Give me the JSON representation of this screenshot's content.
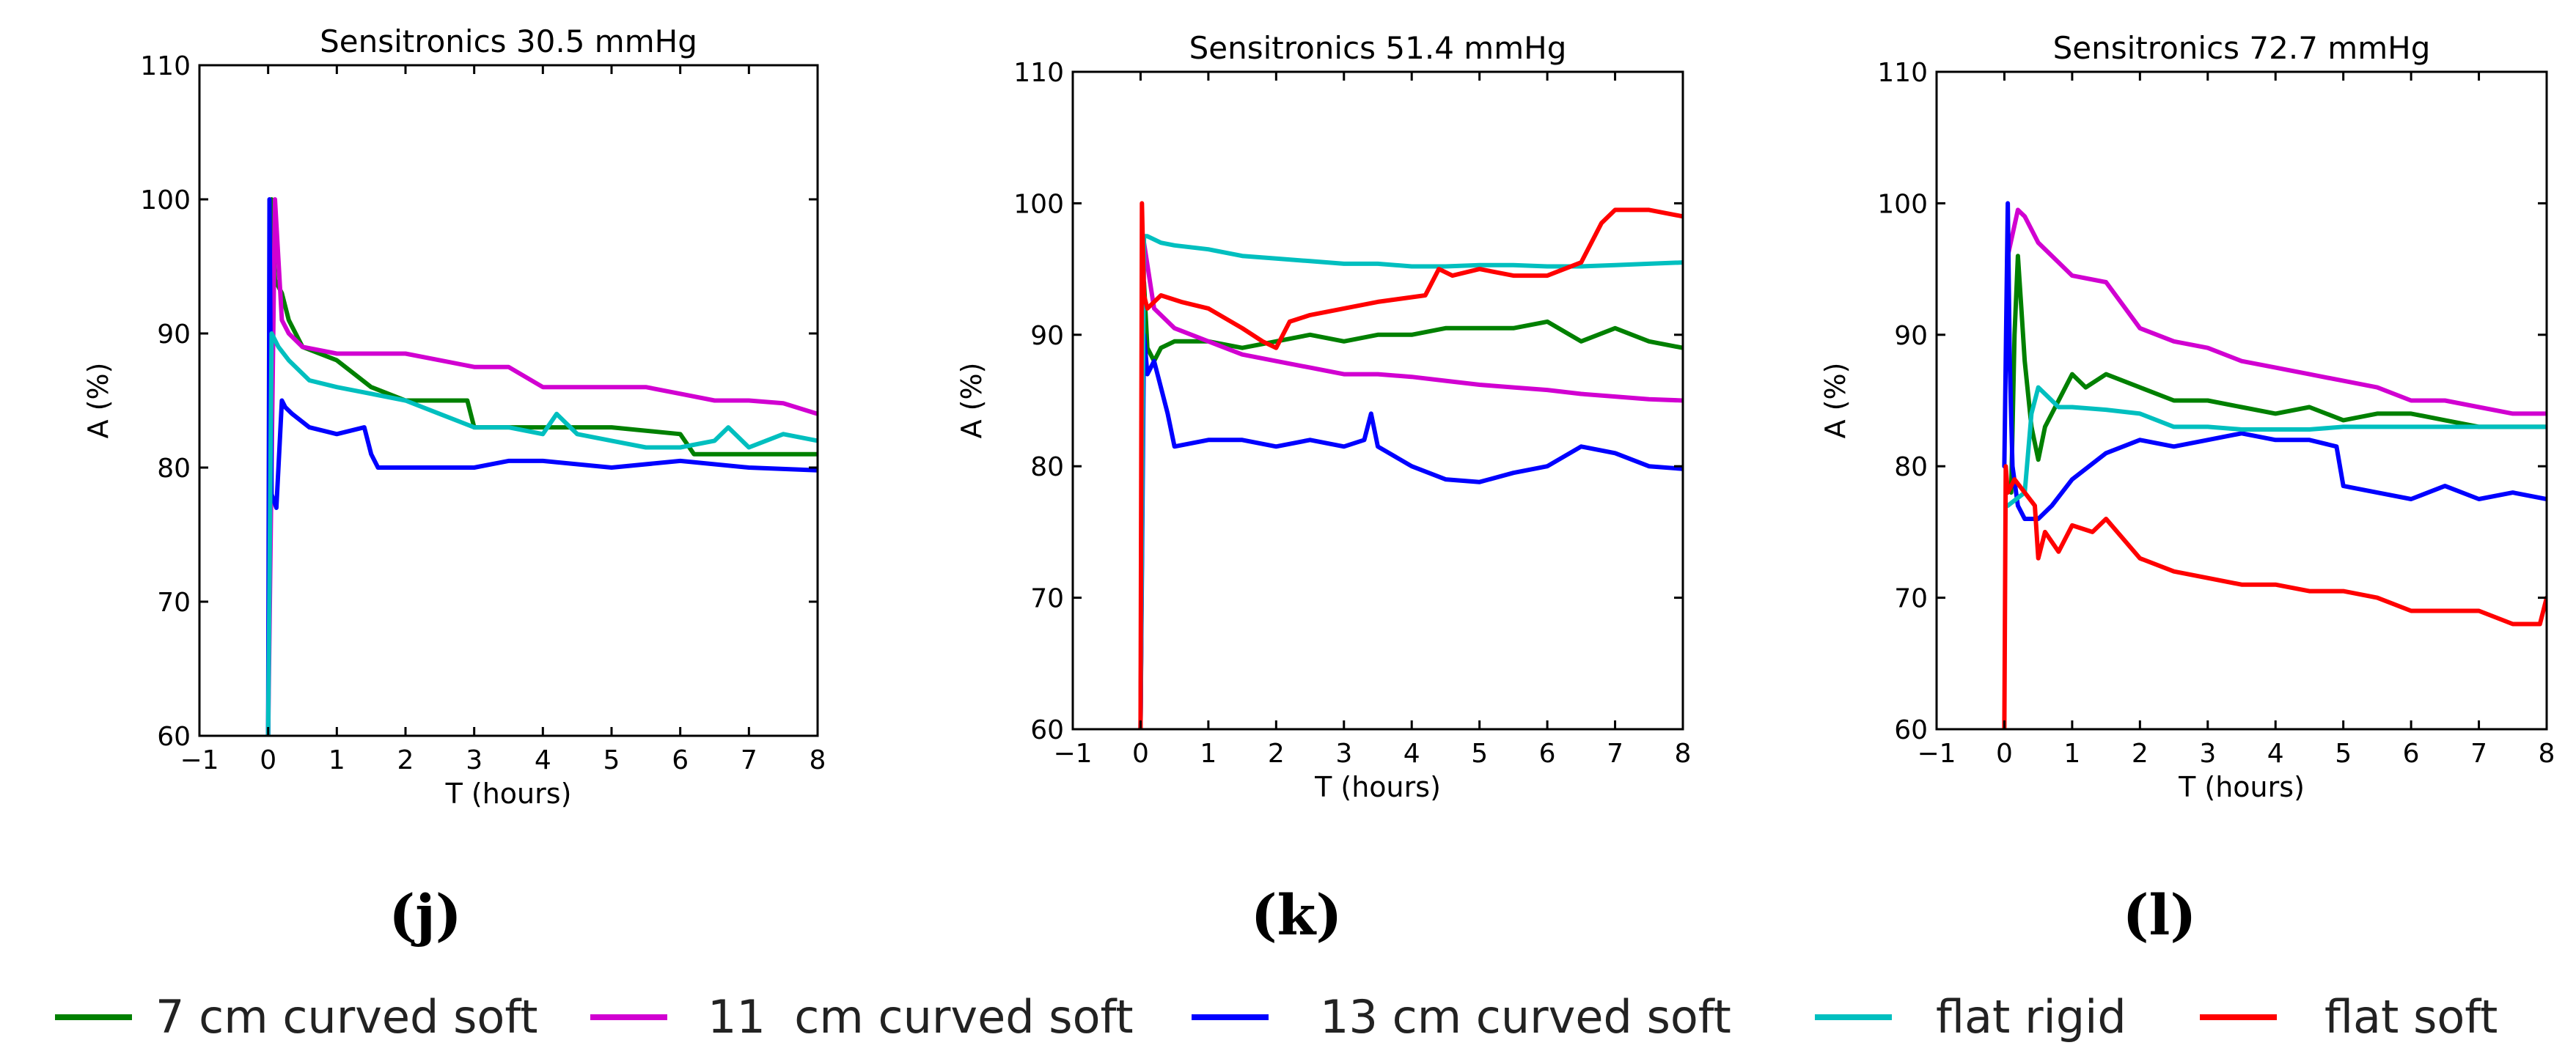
{
  "chart_data": [
    {
      "type": "line",
      "panel_label": "(j)",
      "title": "Sensitronics 30.5 mmHg",
      "xlabel": "T (hours)",
      "ylabel": "A (%)",
      "xlim": [
        -1,
        8
      ],
      "ylim": [
        60,
        110
      ],
      "xticks": [
        -1,
        0,
        1,
        2,
        3,
        4,
        5,
        6,
        7,
        8
      ],
      "yticks": [
        60,
        70,
        80,
        90,
        100,
        110
      ],
      "xtick_labels": [
        "−1",
        "0",
        "1",
        "2",
        "3",
        "4",
        "5",
        "6",
        "7",
        "8"
      ],
      "ytick_labels": [
        "60",
        "70",
        "80",
        "90",
        "100",
        "110"
      ],
      "series": [
        {
          "name": "7 cm curved soft",
          "color": "#008000",
          "x": [
            0,
            0.05,
            0.1,
            0.2,
            0.3,
            0.5,
            1,
            1.5,
            2,
            2.5,
            2.9,
            3,
            4,
            5,
            6,
            6.2,
            7,
            8
          ],
          "y": [
            60,
            100,
            94,
            93,
            91,
            89,
            88,
            86,
            85,
            85,
            85,
            83,
            83,
            83,
            82.5,
            81,
            81,
            81
          ]
        },
        {
          "name": "11  cm curved soft",
          "color": "#d100d1",
          "x": [
            0,
            0.1,
            0.2,
            0.3,
            0.5,
            1,
            1.5,
            2,
            2.5,
            3,
            3.5,
            4,
            4.5,
            5,
            5.5,
            6,
            6.5,
            7,
            7.5,
            8
          ],
          "y": [
            60,
            100,
            91,
            90,
            89,
            88.5,
            88.5,
            88.5,
            88,
            87.5,
            87.5,
            86,
            86,
            86,
            86,
            85.5,
            85,
            85,
            84.8,
            84
          ]
        },
        {
          "name": "13 cm curved soft",
          "color": "#0000ff",
          "x": [
            0,
            0.02,
            0.05,
            0.12,
            0.17,
            0.2,
            0.25,
            0.35,
            0.6,
            1,
            1.4,
            1.5,
            1.6,
            2,
            2.5,
            3,
            3.5,
            4,
            5,
            6,
            7,
            8
          ],
          "y": [
            60,
            100,
            78,
            77,
            82,
            85,
            84.5,
            84,
            83,
            82.5,
            83,
            81,
            80,
            80,
            80,
            80,
            80.5,
            80.5,
            80,
            80.5,
            80,
            79.8
          ]
        },
        {
          "name": "flat rigid",
          "color": "#00bfbf",
          "x": [
            0,
            0.05,
            0.15,
            0.3,
            0.6,
            1,
            1.5,
            2,
            2.5,
            3,
            3.5,
            4,
            4.2,
            4.5,
            5,
            5.5,
            6,
            6.5,
            6.7,
            7,
            7.5,
            8
          ],
          "y": [
            60,
            90,
            89,
            88,
            86.5,
            86,
            85.5,
            85,
            84,
            83,
            83,
            82.5,
            84,
            82.5,
            82,
            81.5,
            81.5,
            82,
            83,
            81.5,
            82.5,
            82
          ]
        }
      ]
    },
    {
      "type": "line",
      "panel_label": "(k)",
      "title": "Sensitronics 51.4 mmHg",
      "xlabel": "T (hours)",
      "ylabel": "A (%)",
      "xlim": [
        -1,
        8
      ],
      "ylim": [
        60,
        110
      ],
      "xticks": [
        -1,
        0,
        1,
        2,
        3,
        4,
        5,
        6,
        7,
        8
      ],
      "yticks": [
        60,
        70,
        80,
        90,
        100,
        110
      ],
      "xtick_labels": [
        "−1",
        "0",
        "1",
        "2",
        "3",
        "4",
        "5",
        "6",
        "7",
        "8"
      ],
      "ytick_labels": [
        "60",
        "70",
        "80",
        "90",
        "100",
        "110"
      ],
      "series": [
        {
          "name": "7 cm curved soft",
          "color": "#008000",
          "x": [
            0,
            0.05,
            0.1,
            0.2,
            0.3,
            0.5,
            1,
            1.5,
            2,
            2.5,
            3,
            3.5,
            4,
            4.5,
            5,
            5.5,
            6,
            6.5,
            7,
            7.5,
            8
          ],
          "y": [
            60,
            94,
            89,
            88,
            89,
            89.5,
            89.5,
            89,
            89.5,
            90,
            89.5,
            90,
            90,
            90.5,
            90.5,
            90.5,
            91,
            89.5,
            90.5,
            89.5,
            89
          ]
        },
        {
          "name": "11  cm curved soft",
          "color": "#d100d1",
          "x": [
            0,
            0.05,
            0.2,
            0.5,
            1,
            1.5,
            2,
            2.5,
            3,
            3.5,
            4,
            4.5,
            5,
            5.5,
            6,
            6.5,
            7,
            7.5,
            8
          ],
          "y": [
            60,
            97,
            92,
            90.5,
            89.5,
            88.5,
            88,
            87.5,
            87,
            87,
            86.8,
            86.5,
            86.2,
            86,
            85.8,
            85.5,
            85.3,
            85.1,
            85
          ]
        },
        {
          "name": "13 cm curved soft",
          "color": "#0000ff",
          "x": [
            0,
            0.05,
            0.1,
            0.2,
            0.3,
            0.4,
            0.5,
            1,
            1.5,
            2,
            2.5,
            3,
            3.3,
            3.4,
            3.5,
            4,
            4.5,
            5,
            5.5,
            6,
            6.5,
            7,
            7.5,
            8
          ],
          "y": [
            60,
            90,
            87,
            88,
            86,
            84,
            81.5,
            82,
            82,
            81.5,
            82,
            81.5,
            82,
            84,
            81.5,
            80,
            79,
            78.8,
            79.5,
            80,
            81.5,
            81,
            80,
            79.8
          ]
        },
        {
          "name": "flat rigid",
          "color": "#00bfbf",
          "x": [
            0,
            0.05,
            0.1,
            0.3,
            0.5,
            1,
            1.5,
            2,
            2.5,
            3,
            3.5,
            4,
            4.5,
            5,
            5.5,
            6,
            6.5,
            7,
            7.5,
            8
          ],
          "y": [
            60,
            97.5,
            97.5,
            97,
            96.8,
            96.5,
            96,
            95.8,
            95.6,
            95.4,
            95.4,
            95.2,
            95.2,
            95.3,
            95.3,
            95.2,
            95.2,
            95.3,
            95.4,
            95.5
          ]
        },
        {
          "name": "flat soft",
          "color": "#ff0000",
          "x": [
            0,
            0.02,
            0.05,
            0.1,
            0.3,
            0.6,
            1,
            1.5,
            1.8,
            2,
            2.2,
            2.5,
            3,
            3.5,
            4.2,
            4.4,
            4.6,
            5,
            5.5,
            6,
            6.5,
            6.8,
            7,
            7.5,
            8
          ],
          "y": [
            60,
            100,
            93,
            92,
            93,
            92.5,
            92,
            90.5,
            89.5,
            89,
            91,
            91.5,
            92,
            92.5,
            93,
            95,
            94.5,
            95,
            94.5,
            94.5,
            95.5,
            98.5,
            99.5,
            99.5,
            99
          ]
        }
      ]
    },
    {
      "type": "line",
      "panel_label": "(l)",
      "title": "Sensitronics 72.7 mmHg",
      "xlabel": "T (hours)",
      "ylabel": "A (%)",
      "xlim": [
        -1,
        8
      ],
      "ylim": [
        60,
        110
      ],
      "xticks": [
        -1,
        0,
        1,
        2,
        3,
        4,
        5,
        6,
        7,
        8
      ],
      "yticks": [
        60,
        70,
        80,
        90,
        100,
        110
      ],
      "xtick_labels": [
        "−1",
        "0",
        "1",
        "2",
        "3",
        "4",
        "5",
        "6",
        "7",
        "8"
      ],
      "ytick_labels": [
        "60",
        "70",
        "80",
        "90",
        "100",
        "110"
      ],
      "series": [
        {
          "name": "7 cm curved soft",
          "color": "#008000",
          "x": [
            0.1,
            0.15,
            0.2,
            0.25,
            0.3,
            0.4,
            0.5,
            0.6,
            0.8,
            1,
            1.2,
            1.5,
            2,
            2.5,
            3,
            3.5,
            4,
            4.5,
            5,
            5.5,
            6,
            6.5,
            7,
            7.5,
            8
          ],
          "y": [
            78,
            90,
            96,
            92,
            88,
            83,
            80.5,
            83,
            85,
            87,
            86,
            87,
            86,
            85,
            85,
            84.5,
            84,
            84.5,
            83.5,
            84,
            84,
            83.5,
            83,
            83,
            83
          ]
        },
        {
          "name": "11  cm curved soft",
          "color": "#d100d1",
          "x": [
            0.05,
            0.2,
            0.3,
            0.5,
            1,
            1.5,
            2,
            2.5,
            3,
            3.5,
            4,
            4.5,
            5,
            5.5,
            6,
            6.5,
            7,
            7.5,
            8
          ],
          "y": [
            96,
            99.5,
            99,
            97,
            94.5,
            94,
            90.5,
            89.5,
            89,
            88,
            87.5,
            87,
            86.5,
            86,
            85,
            85,
            84.5,
            84,
            84
          ]
        },
        {
          "name": "13 cm curved soft",
          "color": "#0000ff",
          "x": [
            0,
            0.05,
            0.08,
            0.12,
            0.2,
            0.3,
            0.5,
            0.7,
            1,
            1.5,
            2,
            2.5,
            3,
            3.5,
            4,
            4.5,
            4.9,
            5,
            5.5,
            6,
            6.5,
            7,
            7.5,
            8
          ],
          "y": [
            80,
            100,
            88,
            80,
            77,
            76,
            76,
            77,
            79,
            81,
            82,
            81.5,
            82,
            82.5,
            82,
            82,
            81.5,
            78.5,
            78,
            77.5,
            78.5,
            77.5,
            78,
            77.5
          ]
        },
        {
          "name": "flat rigid",
          "color": "#00bfbf",
          "x": [
            0.05,
            0.3,
            0.4,
            0.5,
            0.8,
            1,
            1.5,
            2,
            2.5,
            3,
            3.5,
            4,
            4.5,
            5,
            5.5,
            6,
            6.5,
            7,
            7.5,
            8
          ],
          "y": [
            77,
            78,
            84,
            86,
            84.5,
            84.5,
            84.3,
            84,
            83,
            83,
            82.8,
            82.8,
            82.8,
            83,
            83,
            83,
            83,
            83,
            83,
            83
          ]
        },
        {
          "name": "flat soft",
          "color": "#ff0000",
          "x": [
            0,
            0.02,
            0.05,
            0.15,
            0.3,
            0.45,
            0.5,
            0.6,
            0.8,
            1,
            1.3,
            1.5,
            2,
            2.5,
            3,
            3.5,
            4,
            4.5,
            5,
            5.5,
            6,
            6.5,
            7,
            7.5,
            7.9,
            8
          ],
          "y": [
            60,
            80,
            78,
            79,
            78,
            77,
            73,
            75,
            73.5,
            75.5,
            75,
            76,
            73,
            72,
            71.5,
            71,
            71,
            70.5,
            70.5,
            70,
            69,
            69,
            69,
            68,
            68,
            70
          ]
        }
      ]
    }
  ],
  "legend": [
    {
      "label": "7 cm curved soft",
      "color": "#008000"
    },
    {
      "label": "11  cm curved soft",
      "color": "#d100d1"
    },
    {
      "label": "13 cm curved soft",
      "color": "#0000ff"
    },
    {
      "label": "flat rigid",
      "color": "#00bfbf"
    },
    {
      "label": "flat soft",
      "color": "#ff0000"
    }
  ]
}
